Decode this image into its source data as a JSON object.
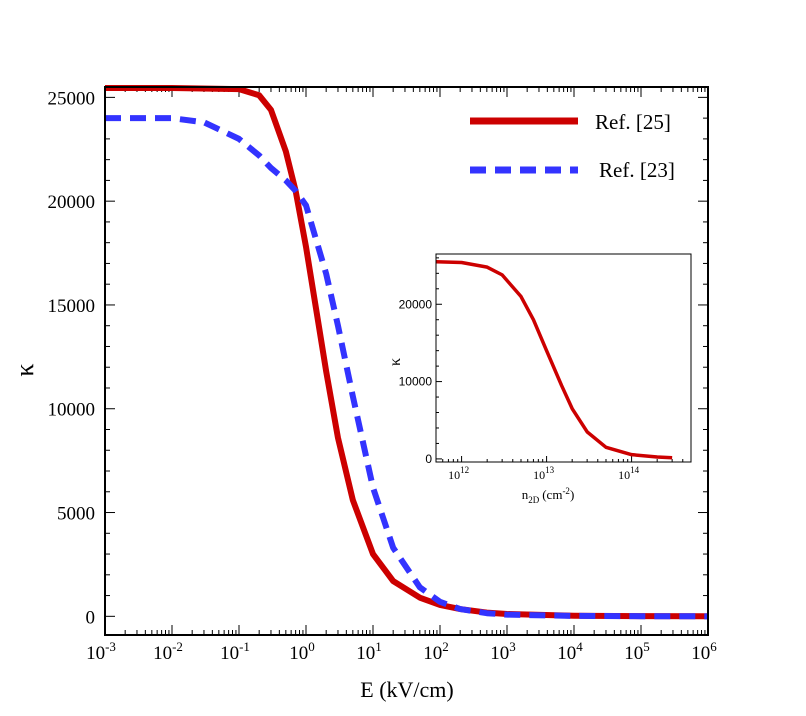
{
  "chart_data": [
    {
      "type": "line",
      "xscale": "log",
      "xlim": [
        0.001,
        1000000
      ],
      "ylim": [
        -900,
        25500
      ],
      "xlabel": "E (kV/cm)",
      "ylabel": "κ",
      "x_ticks": [
        {
          "mant": "10",
          "exp": "-3"
        },
        {
          "mant": "10",
          "exp": "-2"
        },
        {
          "mant": "10",
          "exp": "-1"
        },
        {
          "mant": "10",
          "exp": "0"
        },
        {
          "mant": "10",
          "exp": "1"
        },
        {
          "mant": "10",
          "exp": "2"
        },
        {
          "mant": "10",
          "exp": "3"
        },
        {
          "mant": "10",
          "exp": "4"
        },
        {
          "mant": "10",
          "exp": "5"
        },
        {
          "mant": "10",
          "exp": "6"
        }
      ],
      "y_ticks": [
        {
          "value": 0,
          "label": "0"
        },
        {
          "value": 5000,
          "label": "5000"
        },
        {
          "value": 10000,
          "label": "10000"
        },
        {
          "value": 15000,
          "label": "15000"
        },
        {
          "value": 20000,
          "label": "20000"
        },
        {
          "value": 25000,
          "label": "25000"
        }
      ],
      "legend": [
        {
          "label": "Ref. [25]",
          "color": "#cc0000",
          "style": "solid"
        },
        {
          "label": "Ref. [23]",
          "color": "#3333ff",
          "style": "dashed"
        }
      ],
      "legend_position": "top-right",
      "series": [
        {
          "name": "Ref. [25]",
          "color": "#cc0000",
          "style": "solid",
          "x": [
            0.001,
            0.01,
            0.1,
            0.2,
            0.3,
            0.5,
            0.7,
            1,
            1.5,
            2,
            3,
            5,
            10,
            20,
            50,
            100,
            200,
            500,
            1000,
            10000,
            100000,
            1000000
          ],
          "values": [
            25450,
            25450,
            25400,
            25100,
            24400,
            22400,
            20500,
            17800,
            14300,
            11800,
            8600,
            5600,
            3000,
            1700,
            900,
            550,
            350,
            180,
            110,
            30,
            10,
            5
          ]
        },
        {
          "name": "Ref. [23]",
          "color": "#3333ff",
          "style": "dashed",
          "x": [
            0.001,
            0.01,
            0.03,
            0.1,
            0.2,
            0.3,
            0.5,
            0.7,
            1,
            2,
            3,
            5,
            10,
            20,
            50,
            100,
            200,
            500,
            1000,
            10000,
            100000,
            1000000
          ],
          "values": [
            24000,
            24000,
            23800,
            23000,
            22200,
            21600,
            21000,
            20500,
            19800,
            16500,
            14000,
            10600,
            6200,
            3300,
            1400,
            700,
            350,
            150,
            80,
            20,
            5,
            0
          ]
        }
      ]
    },
    {
      "type": "line",
      "xscale": "log",
      "xlim": [
        500000000000.0,
        500000000000000.0
      ],
      "ylim": [
        -400,
        26500
      ],
      "xlabel": "n",
      "xlabel_sub": "2D",
      "xlabel_unit": "(cm",
      "xlabel_unit_exp": "-2",
      "xlabel_unit_close": ")",
      "ylabel": "κ",
      "x_ticks": [
        {
          "mant": "10",
          "exp": "12"
        },
        {
          "mant": "10",
          "exp": "13"
        },
        {
          "mant": "10",
          "exp": "14"
        }
      ],
      "y_ticks": [
        {
          "value": 0,
          "label": "0"
        },
        {
          "value": 10000,
          "label": "10000"
        },
        {
          "value": 20000,
          "label": "20000"
        }
      ],
      "series": [
        {
          "name": "inset",
          "color": "#cc0000",
          "style": "solid",
          "x": [
            500000000000.0,
            1000000000000.0,
            2000000000000.0,
            3000000000000.0,
            5000000000000.0,
            7000000000000.0,
            10000000000000.0,
            15000000000000.0,
            20000000000000.0,
            30000000000000.0,
            50000000000000.0,
            100000000000000.0,
            200000000000000.0,
            300000000000000.0
          ],
          "values": [
            25500,
            25400,
            24800,
            23800,
            21000,
            18000,
            14000,
            9500,
            6500,
            3500,
            1500,
            550,
            250,
            150
          ]
        }
      ]
    }
  ]
}
